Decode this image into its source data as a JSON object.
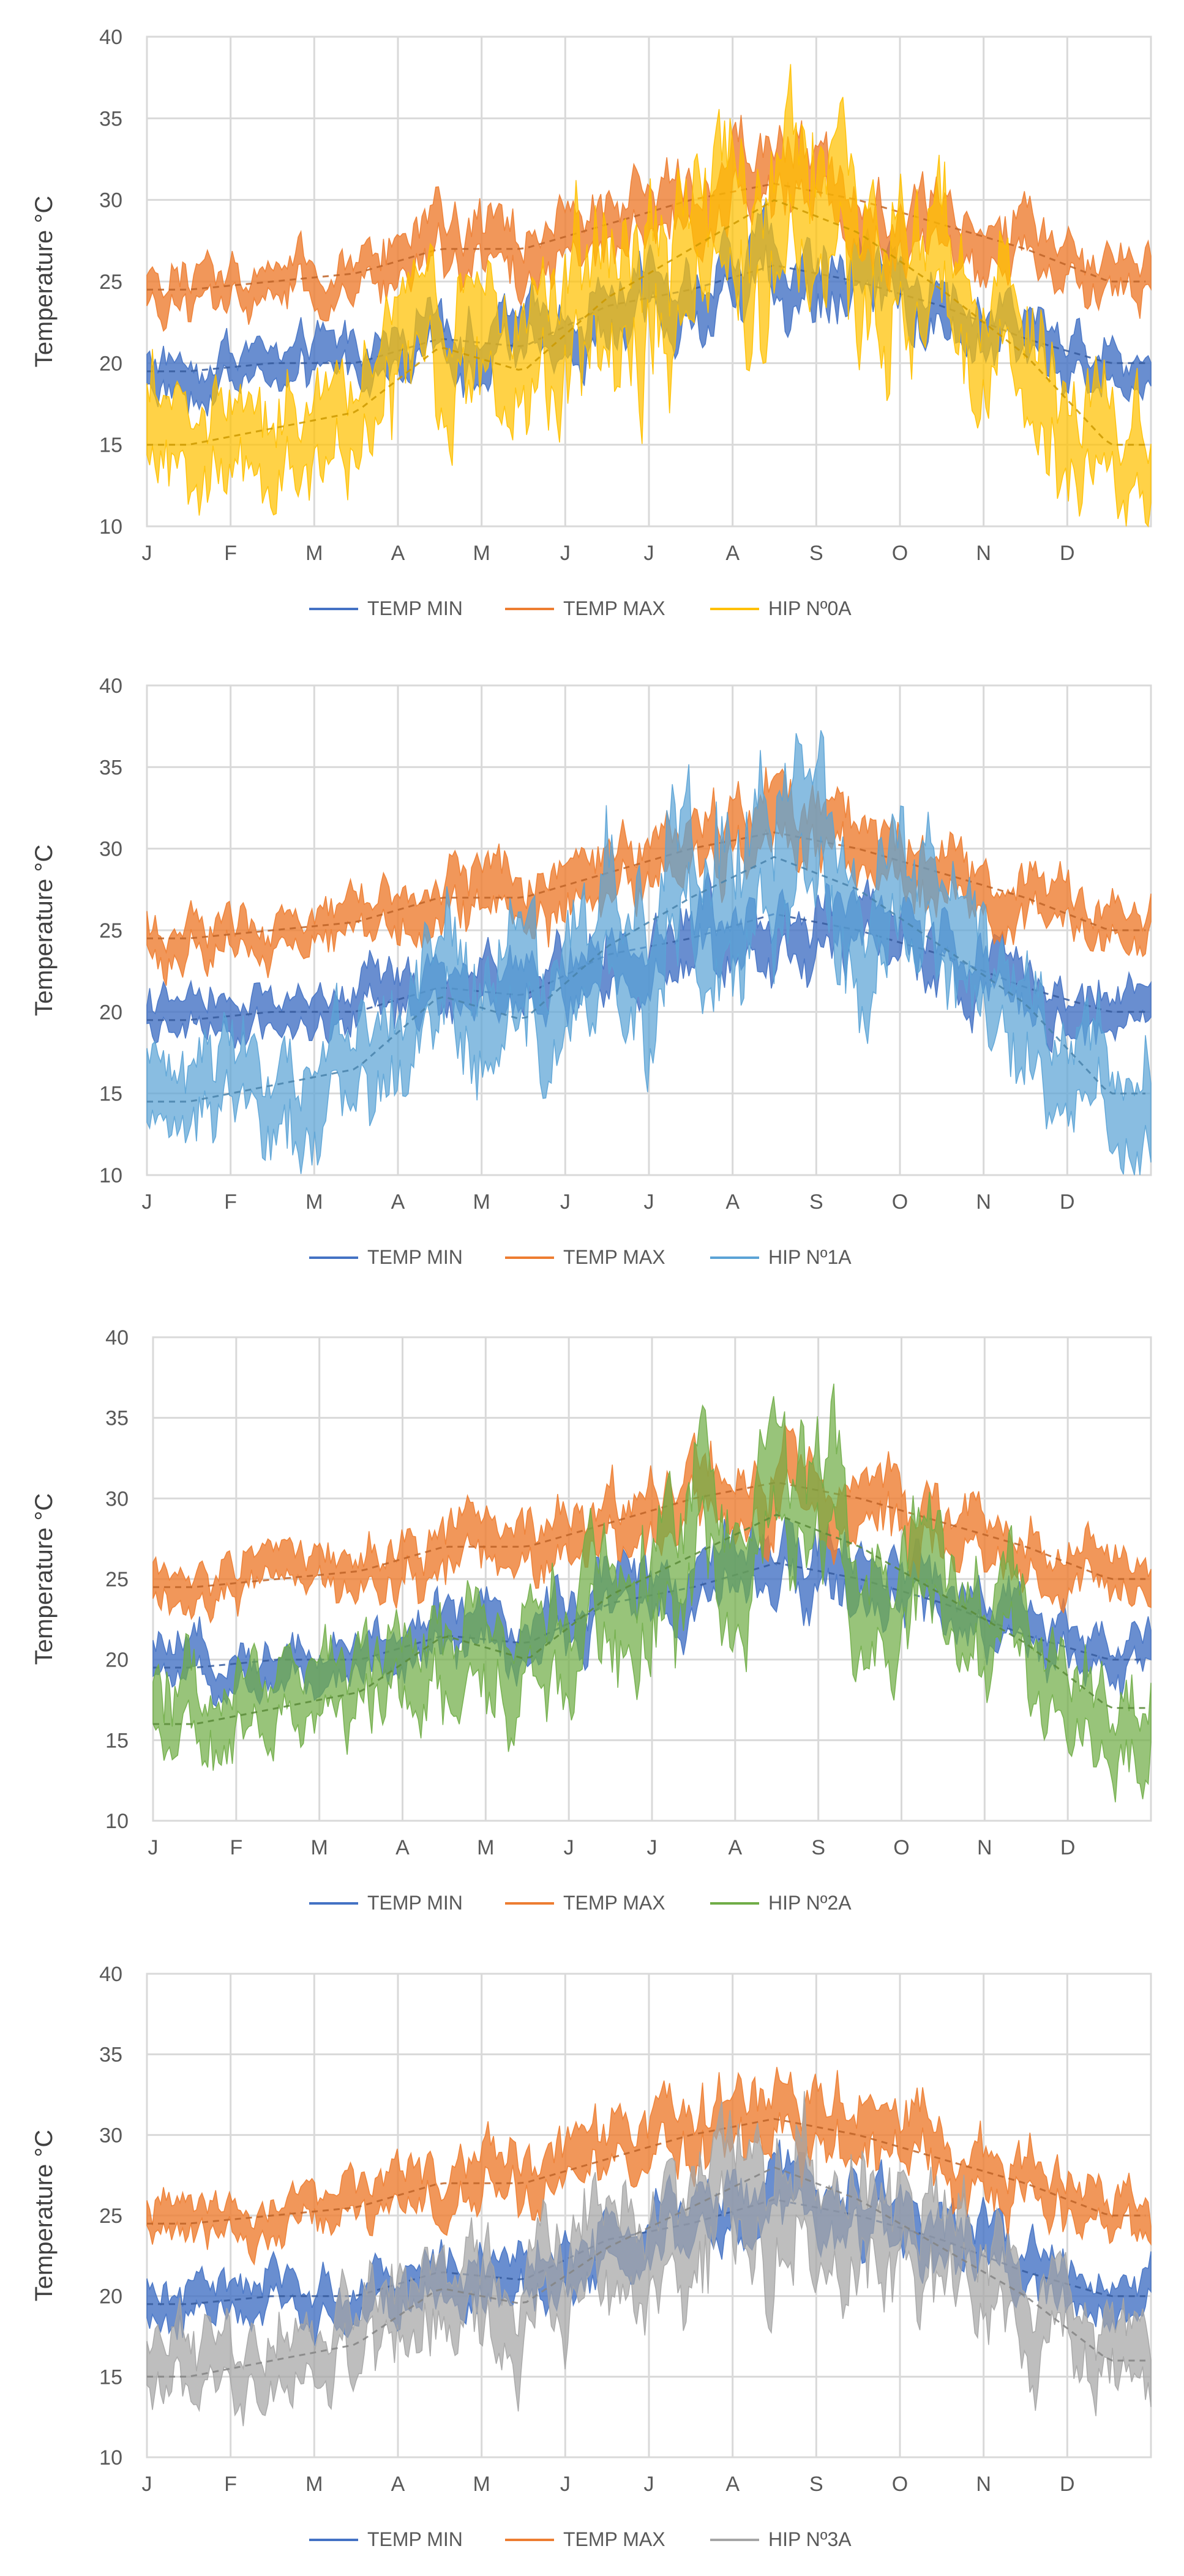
{
  "colors": {
    "temp_min": "#4472C4",
    "temp_max": "#ED7D31",
    "grid": "#D9D9D9",
    "text": "#595959"
  },
  "chart_data": [
    {
      "type": "line",
      "ylabel": "Temperature °C",
      "xlabel": "",
      "ylim": [
        10,
        40
      ],
      "yticks": [
        10,
        15,
        20,
        25,
        30,
        35,
        40
      ],
      "categories": [
        "J",
        "F",
        "M",
        "A",
        "M",
        "J",
        "J",
        "A",
        "S",
        "O",
        "N",
        "D"
      ],
      "grid": true,
      "legend": "bottom",
      "series": [
        {
          "name": "TEMP MIN",
          "color": "#4472C4",
          "values": [
            19.5,
            20,
            20,
            21.5,
            21,
            23.5,
            24.5,
            26,
            25,
            23.5,
            21.5,
            20
          ],
          "band": [
            1.4,
            1.4,
            1.5,
            1.8,
            1.8,
            1.9,
            2.0,
            2.1,
            2.0,
            1.9,
            1.8,
            1.5
          ]
        },
        {
          "name": "TEMP  MAX",
          "color": "#ED7D31",
          "values": [
            24.5,
            25,
            25.5,
            27,
            27,
            28.5,
            30,
            31,
            30,
            28.5,
            27,
            25
          ],
          "band": [
            1.4,
            1.4,
            1.5,
            1.9,
            1.9,
            2.0,
            2.2,
            2.3,
            2.2,
            2.0,
            1.8,
            1.5
          ]
        },
        {
          "name": "HIP Nº0A",
          "color": "#FFC000",
          "values": [
            15,
            16,
            17,
            21,
            19.5,
            24,
            27,
            30,
            28,
            24.5,
            20.5,
            15
          ],
          "band": [
            3.2,
            3.2,
            3.2,
            4.2,
            4.2,
            4.8,
            5.2,
            5.6,
            4.8,
            4.2,
            3.8,
            3.4
          ]
        }
      ]
    },
    {
      "type": "line",
      "ylabel": "Temperature °C",
      "xlabel": "",
      "ylim": [
        10,
        40
      ],
      "yticks": [
        10,
        15,
        20,
        25,
        30,
        35,
        40
      ],
      "categories": [
        "J",
        "F",
        "M",
        "A",
        "M",
        "J",
        "J",
        "A",
        "S",
        "O",
        "N",
        "D"
      ],
      "grid": true,
      "legend": "bottom",
      "series": [
        {
          "name": "TEMP MIN",
          "color": "#4472C4",
          "values": [
            19.5,
            20,
            20,
            21.5,
            21,
            23.5,
            24.5,
            26,
            25,
            23.5,
            21.5,
            20
          ],
          "band": [
            1.4,
            1.4,
            1.5,
            1.8,
            1.8,
            1.9,
            2.0,
            2.1,
            2.0,
            1.9,
            1.8,
            1.5
          ]
        },
        {
          "name": "TEMP  MAX",
          "color": "#ED7D31",
          "values": [
            24.5,
            25,
            25.5,
            27,
            27,
            28.5,
            30,
            31,
            30,
            28.5,
            27,
            25
          ],
          "band": [
            1.4,
            1.4,
            1.5,
            1.9,
            1.9,
            2.0,
            2.2,
            2.3,
            2.2,
            2.0,
            1.8,
            1.5
          ]
        },
        {
          "name": "HIP Nº1A",
          "color": "#5BA3D6",
          "values": [
            14.5,
            15.5,
            16.5,
            21,
            19.5,
            24,
            27,
            29.5,
            27.5,
            24,
            20.5,
            15
          ],
          "band": [
            3.0,
            3.0,
            3.0,
            4.0,
            4.0,
            4.6,
            5.0,
            5.2,
            4.6,
            4.0,
            3.6,
            3.2
          ]
        }
      ]
    },
    {
      "type": "line",
      "ylabel": "Temperature °C",
      "xlabel": "",
      "ylim": [
        10,
        40
      ],
      "yticks": [
        10,
        15,
        20,
        25,
        30,
        35,
        40
      ],
      "categories": [
        "J",
        "F",
        "M",
        "A",
        "M",
        "J",
        "J",
        "A",
        "S",
        "O",
        "N",
        "D"
      ],
      "grid": true,
      "legend": "bottom",
      "series": [
        {
          "name": "TEMP MIN",
          "color": "#4472C4",
          "values": [
            19.5,
            20,
            20,
            21.5,
            21,
            23.5,
            24.5,
            26,
            25,
            23.5,
            21.5,
            20
          ],
          "band": [
            1.4,
            1.4,
            1.5,
            1.8,
            1.8,
            1.9,
            2.0,
            2.1,
            2.0,
            1.9,
            1.8,
            1.5
          ]
        },
        {
          "name": "TEMP  MAX",
          "color": "#ED7D31",
          "values": [
            24.5,
            25,
            25.5,
            27,
            27,
            28.5,
            30,
            31,
            30,
            28.5,
            27,
            25
          ],
          "band": [
            1.4,
            1.4,
            1.5,
            1.9,
            1.9,
            2.0,
            2.2,
            2.3,
            2.2,
            2.0,
            1.8,
            1.5
          ]
        },
        {
          "name": "HIP Nº2A",
          "color": "#70AD47",
          "values": [
            16,
            17,
            18,
            21.5,
            20,
            24,
            26.5,
            29,
            27,
            24,
            21,
            17
          ],
          "band": [
            2.6,
            2.6,
            2.6,
            3.4,
            3.4,
            4.0,
            4.4,
            4.6,
            4.0,
            3.6,
            3.0,
            2.8
          ]
        }
      ]
    },
    {
      "type": "line",
      "ylabel": "Temperature °C",
      "xlabel": "",
      "ylim": [
        10,
        40
      ],
      "yticks": [
        10,
        15,
        20,
        25,
        30,
        35,
        40
      ],
      "categories": [
        "J",
        "F",
        "M",
        "A",
        "M",
        "J",
        "J",
        "A",
        "S",
        "O",
        "N",
        "D"
      ],
      "grid": true,
      "legend": "bottom",
      "series": [
        {
          "name": "TEMP MIN",
          "color": "#4472C4",
          "values": [
            19.5,
            20,
            20,
            21.5,
            21,
            23.5,
            24.5,
            26,
            25,
            23.5,
            21.5,
            20
          ],
          "band": [
            1.4,
            1.4,
            1.5,
            1.8,
            1.8,
            1.9,
            2.0,
            2.1,
            2.0,
            1.9,
            1.8,
            1.5
          ]
        },
        {
          "name": "TEMP  MAX",
          "color": "#ED7D31",
          "values": [
            24.5,
            25,
            25.5,
            27,
            27,
            28.5,
            30,
            31,
            30,
            28.5,
            27,
            25
          ],
          "band": [
            1.4,
            1.4,
            1.5,
            1.9,
            1.9,
            2.0,
            2.2,
            2.3,
            2.2,
            2.0,
            1.8,
            1.5
          ]
        },
        {
          "name": "HIP Nº3A",
          "color": "#A5A5A5",
          "values": [
            15,
            16,
            17,
            20.5,
            19.5,
            23,
            25.5,
            28,
            26,
            23,
            20,
            16
          ],
          "band": [
            2.4,
            2.4,
            2.4,
            3.2,
            3.2,
            3.8,
            4.2,
            4.4,
            3.8,
            3.4,
            3.0,
            2.6
          ]
        }
      ]
    }
  ]
}
